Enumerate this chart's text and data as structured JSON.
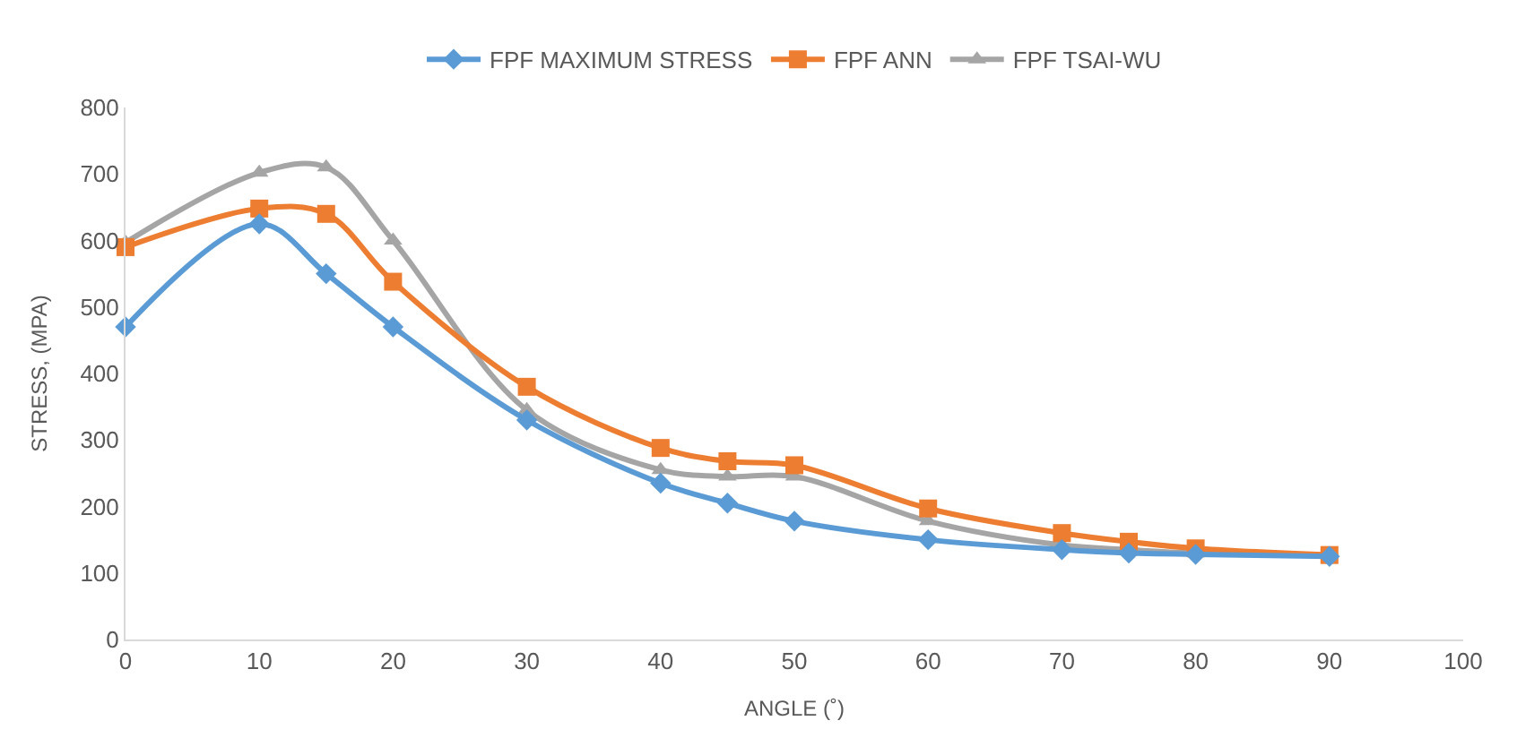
{
  "chart_data": {
    "type": "line",
    "xlabel": "ANGLE (˚)",
    "ylabel": "STRESS, (MPA)",
    "x": [
      0,
      10,
      15,
      20,
      30,
      40,
      45,
      50,
      60,
      70,
      75,
      80,
      90
    ],
    "series": [
      {
        "name": "FPF MAXIMUM STRESS",
        "color": "#5b9bd5",
        "marker": "diamond",
        "values": [
          470,
          625,
          550,
          470,
          330,
          235,
          205,
          178,
          150,
          135,
          130,
          128,
          125
        ]
      },
      {
        "name": "FPF ANN",
        "color": "#ed7d31",
        "marker": "square",
        "values": [
          590,
          648,
          640,
          538,
          380,
          288,
          268,
          262,
          197,
          160,
          147,
          137,
          127
        ]
      },
      {
        "name": "FPF TSAI-WU",
        "color": "#a5a5a5",
        "marker": "triangle",
        "values": [
          597,
          702,
          710,
          600,
          345,
          255,
          245,
          245,
          178,
          142,
          135,
          130,
          127
        ]
      }
    ],
    "xlim": [
      0,
      100
    ],
    "xticks": [
      0,
      10,
      20,
      30,
      40,
      50,
      60,
      70,
      80,
      90,
      100
    ],
    "ylim": [
      0,
      800
    ],
    "yticks": [
      0,
      100,
      200,
      300,
      400,
      500,
      600,
      700,
      800
    ],
    "grid": false,
    "legend": "top",
    "line_style": "solid"
  }
}
